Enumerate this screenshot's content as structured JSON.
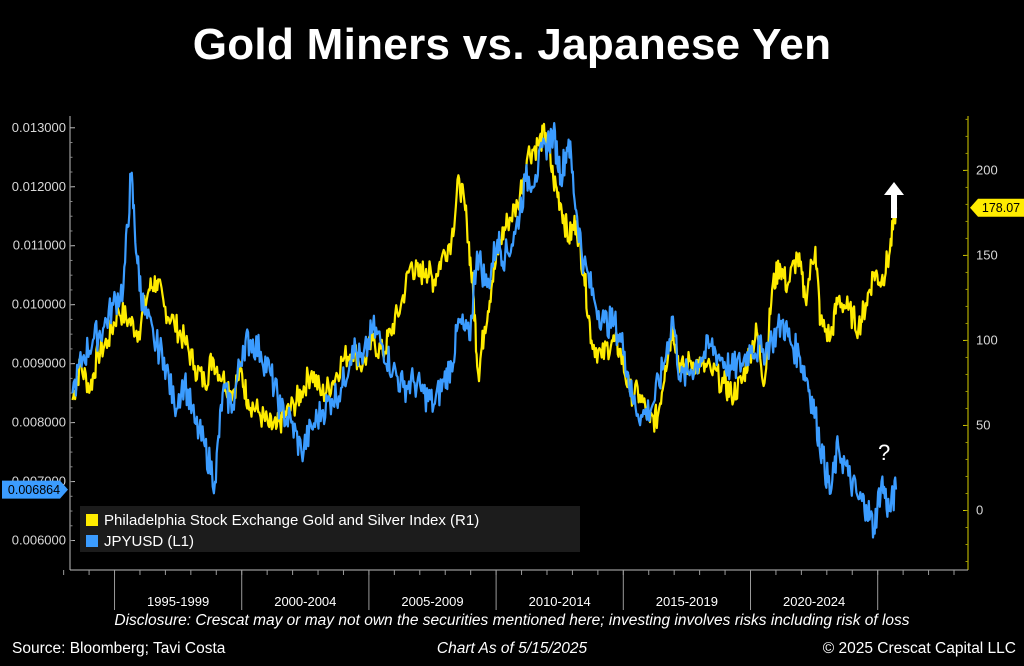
{
  "title": "Gold Miners vs. Japanese Yen",
  "chart_data": {
    "type": "line",
    "x_periods": [
      "1995-1999",
      "2000-2004",
      "2005-2009",
      "2010-2014",
      "2015-2019",
      "2020-2024"
    ],
    "y_left": {
      "ticks": [
        "0.013000",
        "0.012000",
        "0.011000",
        "0.010000",
        "0.009000",
        "0.008000",
        "0.007000",
        "0.006000"
      ],
      "range": [
        0.0055,
        0.0132
      ],
      "last_value_label": "0.006864"
    },
    "y_right": {
      "ticks": [
        "200",
        "150",
        "100",
        "50",
        "0"
      ],
      "range": [
        -35,
        232
      ],
      "last_value_label": "178.07"
    },
    "series": [
      {
        "name": "Philadelphia Stock Exchange Gold and Silver Index (R1)",
        "axis": "right",
        "color": "#ffec00",
        "points": [
          [
            1993.0,
            65
          ],
          [
            1993.3,
            85
          ],
          [
            1993.7,
            72
          ],
          [
            1994.0,
            92
          ],
          [
            1994.4,
            100
          ],
          [
            1994.8,
            118
          ],
          [
            1995.2,
            112
          ],
          [
            1995.6,
            105
          ],
          [
            1996.0,
            130
          ],
          [
            1996.3,
            135
          ],
          [
            1996.6,
            120
          ],
          [
            1997.0,
            110
          ],
          [
            1997.4,
            100
          ],
          [
            1997.8,
            85
          ],
          [
            1998.2,
            75
          ],
          [
            1998.5,
            90
          ],
          [
            1998.9,
            78
          ],
          [
            1999.3,
            70
          ],
          [
            1999.6,
            82
          ],
          [
            1999.9,
            65
          ],
          [
            2000.3,
            58
          ],
          [
            2000.7,
            50
          ],
          [
            2001.0,
            48
          ],
          [
            2001.3,
            55
          ],
          [
            2001.7,
            62
          ],
          [
            2002.0,
            70
          ],
          [
            2002.4,
            82
          ],
          [
            2002.8,
            68
          ],
          [
            2003.2,
            75
          ],
          [
            2003.6,
            88
          ],
          [
            2004.0,
            95
          ],
          [
            2004.4,
            85
          ],
          [
            2004.8,
            100
          ],
          [
            2005.2,
            92
          ],
          [
            2005.5,
            105
          ],
          [
            2005.9,
            120
          ],
          [
            2006.3,
            145
          ],
          [
            2006.6,
            138
          ],
          [
            2006.9,
            142
          ],
          [
            2007.2,
            135
          ],
          [
            2007.5,
            148
          ],
          [
            2007.9,
            160
          ],
          [
            2008.2,
            195
          ],
          [
            2008.5,
            170
          ],
          [
            2008.75,
            128
          ],
          [
            2008.95,
            80
          ],
          [
            2009.2,
            108
          ],
          [
            2009.5,
            135
          ],
          [
            2009.8,
            158
          ],
          [
            2010.1,
            170
          ],
          [
            2010.5,
            180
          ],
          [
            2010.9,
            210
          ],
          [
            2011.3,
            215
          ],
          [
            2011.6,
            222
          ],
          [
            2011.9,
            195
          ],
          [
            2012.2,
            180
          ],
          [
            2012.5,
            160
          ],
          [
            2012.8,
            170
          ],
          [
            2013.1,
            140
          ],
          [
            2013.4,
            100
          ],
          [
            2013.8,
            90
          ],
          [
            2014.2,
            100
          ],
          [
            2014.5,
            95
          ],
          [
            2014.9,
            70
          ],
          [
            2015.3,
            68
          ],
          [
            2015.7,
            52
          ],
          [
            2016.0,
            55
          ],
          [
            2016.3,
            85
          ],
          [
            2016.6,
            108
          ],
          [
            2016.9,
            82
          ],
          [
            2017.3,
            88
          ],
          [
            2017.7,
            85
          ],
          [
            2018.1,
            82
          ],
          [
            2018.6,
            75
          ],
          [
            2018.9,
            68
          ],
          [
            2019.3,
            75
          ],
          [
            2019.6,
            92
          ],
          [
            2019.9,
            105
          ],
          [
            2020.2,
            75
          ],
          [
            2020.5,
            130
          ],
          [
            2020.8,
            145
          ],
          [
            2021.1,
            132
          ],
          [
            2021.5,
            150
          ],
          [
            2021.8,
            125
          ],
          [
            2022.2,
            155
          ],
          [
            2022.4,
            110
          ],
          [
            2022.8,
            102
          ],
          [
            2023.1,
            125
          ],
          [
            2023.5,
            118
          ],
          [
            2023.9,
            108
          ],
          [
            2024.2,
            122
          ],
          [
            2024.5,
            140
          ],
          [
            2024.8,
            135
          ],
          [
            2025.1,
            150
          ],
          [
            2025.37,
            178.07
          ]
        ]
      },
      {
        "name": "JPYUSD (L1)",
        "axis": "left",
        "color": "#3b9cff",
        "points": [
          [
            1993.0,
            0.0085
          ],
          [
            1993.4,
            0.0091
          ],
          [
            1993.8,
            0.0094
          ],
          [
            1994.2,
            0.0096
          ],
          [
            1994.6,
            0.01
          ],
          [
            1995.0,
            0.0103
          ],
          [
            1995.3,
            0.0122
          ],
          [
            1995.55,
            0.0107
          ],
          [
            1995.8,
            0.0099
          ],
          [
            1996.2,
            0.0094
          ],
          [
            1996.6,
            0.0091
          ],
          [
            1997.0,
            0.0083
          ],
          [
            1997.4,
            0.0087
          ],
          [
            1997.8,
            0.008
          ],
          [
            1998.2,
            0.0076
          ],
          [
            1998.6,
            0.007
          ],
          [
            1998.9,
            0.0085
          ],
          [
            1999.3,
            0.0083
          ],
          [
            1999.7,
            0.0093
          ],
          [
            2000.0,
            0.0094
          ],
          [
            2000.4,
            0.0092
          ],
          [
            2000.8,
            0.0088
          ],
          [
            2001.2,
            0.0082
          ],
          [
            2001.6,
            0.008
          ],
          [
            2002.0,
            0.0075
          ],
          [
            2002.4,
            0.0079
          ],
          [
            2002.8,
            0.0082
          ],
          [
            2003.2,
            0.0084
          ],
          [
            2003.6,
            0.0086
          ],
          [
            2004.0,
            0.0093
          ],
          [
            2004.4,
            0.009
          ],
          [
            2004.8,
            0.0096
          ],
          [
            2005.2,
            0.0093
          ],
          [
            2005.6,
            0.0089
          ],
          [
            2006.0,
            0.0086
          ],
          [
            2006.4,
            0.0087
          ],
          [
            2006.8,
            0.0085
          ],
          [
            2007.2,
            0.0083
          ],
          [
            2007.6,
            0.0087
          ],
          [
            2007.9,
            0.009
          ],
          [
            2008.2,
            0.0097
          ],
          [
            2008.6,
            0.0094
          ],
          [
            2008.9,
            0.0109
          ],
          [
            2009.3,
            0.0103
          ],
          [
            2009.7,
            0.0111
          ],
          [
            2010.0,
            0.0108
          ],
          [
            2010.4,
            0.0112
          ],
          [
            2010.8,
            0.0121
          ],
          [
            2011.2,
            0.0122
          ],
          [
            2011.6,
            0.0127
          ],
          [
            2011.9,
            0.0129
          ],
          [
            2012.2,
            0.0122
          ],
          [
            2012.5,
            0.0128
          ],
          [
            2012.8,
            0.0116
          ],
          [
            2013.1,
            0.0107
          ],
          [
            2013.5,
            0.0101
          ],
          [
            2013.9,
            0.0097
          ],
          [
            2014.3,
            0.0097
          ],
          [
            2014.7,
            0.0092
          ],
          [
            2015.0,
            0.0084
          ],
          [
            2015.4,
            0.0081
          ],
          [
            2015.8,
            0.0083
          ],
          [
            2016.2,
            0.0089
          ],
          [
            2016.6,
            0.0098
          ],
          [
            2016.9,
            0.0087
          ],
          [
            2017.3,
            0.0089
          ],
          [
            2017.7,
            0.0091
          ],
          [
            2018.1,
            0.0093
          ],
          [
            2018.5,
            0.0091
          ],
          [
            2018.9,
            0.0089
          ],
          [
            2019.3,
            0.009
          ],
          [
            2019.7,
            0.0093
          ],
          [
            2020.1,
            0.0092
          ],
          [
            2020.5,
            0.0094
          ],
          [
            2020.9,
            0.0097
          ],
          [
            2021.2,
            0.0094
          ],
          [
            2021.6,
            0.0091
          ],
          [
            2021.9,
            0.0087
          ],
          [
            2022.2,
            0.0081
          ],
          [
            2022.5,
            0.0074
          ],
          [
            2022.8,
            0.0068
          ],
          [
            2023.1,
            0.0076
          ],
          [
            2023.5,
            0.0071
          ],
          [
            2023.9,
            0.0067
          ],
          [
            2024.2,
            0.0066
          ],
          [
            2024.5,
            0.0062
          ],
          [
            2024.8,
            0.007
          ],
          [
            2025.1,
            0.0065
          ],
          [
            2025.37,
            0.006864
          ]
        ]
      }
    ],
    "legend": [
      "Philadelphia Stock Exchange Gold and Silver Index (R1)",
      "JPYUSD (L1)"
    ],
    "legend_position": "bottom-left"
  },
  "annotations": {
    "arrow_icon": "arrow-up-icon",
    "question": "?"
  },
  "footer": {
    "disclosure": "Disclosure: Crescat may or may not own the securities mentioned here; investing involves risks including risk of loss",
    "source": "Source: Bloomberg; Tavi Costa",
    "as_of": "Chart As of 5/15/2025",
    "copyright": "© 2025 Crescat Capital LLC"
  }
}
